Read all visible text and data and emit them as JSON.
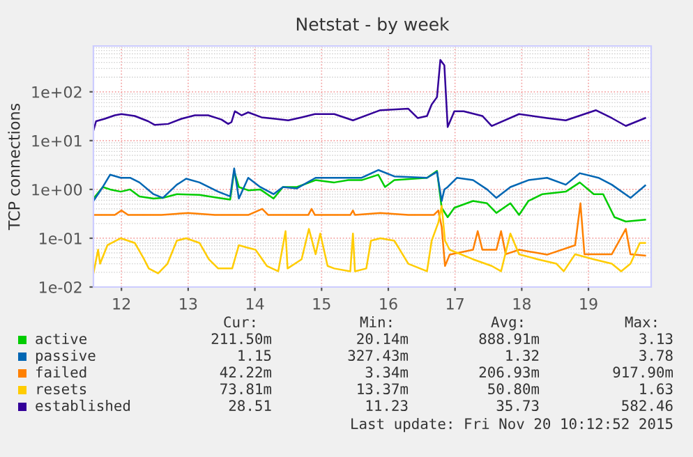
{
  "chart_data": {
    "type": "line",
    "title": "Netstat - by week",
    "ylabel": "TCP connections",
    "log": "y",
    "grid": true,
    "legend": "bottom",
    "xlim": [
      11.58,
      19.94
    ],
    "xticks": [
      12,
      13,
      14,
      15,
      16,
      17,
      18,
      19
    ],
    "ylim": [
      0.01,
      870
    ],
    "yticks": [
      {
        "value": 0.01,
        "label": "1e-02"
      },
      {
        "value": 0.1,
        "label": "1e-01"
      },
      {
        "value": 1,
        "label": "1e+00"
      },
      {
        "value": 10,
        "label": "1e+01"
      },
      {
        "value": 100,
        "label": "1e+02"
      }
    ],
    "series": [
      {
        "name": "active",
        "color": "#00cc00",
        "x": [
          11.58,
          11.72,
          11.83,
          11.99,
          12.13,
          12.27,
          12.48,
          12.62,
          12.83,
          13.17,
          13.45,
          13.63,
          13.69,
          13.76,
          13.9,
          14.08,
          14.28,
          14.42,
          14.63,
          14.91,
          15.19,
          15.4,
          15.6,
          15.85,
          15.95,
          16.09,
          16.58,
          16.73,
          16.8,
          16.89,
          16.99,
          17.27,
          17.48,
          17.62,
          17.83,
          17.96,
          18.1,
          18.31,
          18.66,
          18.87,
          19.08,
          19.22,
          19.39,
          19.56,
          19.85
        ],
        "values": [
          0.65,
          1.12,
          1.0,
          0.9,
          1.0,
          0.72,
          0.65,
          0.67,
          0.8,
          0.77,
          0.67,
          0.62,
          2.4,
          1.12,
          0.96,
          1.0,
          0.65,
          1.12,
          1.12,
          1.55,
          1.39,
          1.55,
          1.55,
          2.0,
          1.12,
          1.55,
          1.73,
          2.4,
          0.42,
          0.27,
          0.42,
          0.58,
          0.52,
          0.33,
          0.52,
          0.3,
          0.58,
          0.8,
          0.9,
          1.39,
          0.8,
          0.8,
          0.27,
          0.22,
          0.24
        ]
      },
      {
        "name": "passive",
        "color": "#0066b3",
        "x": [
          11.58,
          11.72,
          11.83,
          11.99,
          12.13,
          12.27,
          12.48,
          12.62,
          12.83,
          12.97,
          13.17,
          13.45,
          13.63,
          13.69,
          13.76,
          13.9,
          14.08,
          14.28,
          14.42,
          14.63,
          14.91,
          15.19,
          15.6,
          15.85,
          16.09,
          16.58,
          16.73,
          16.8,
          16.84,
          16.89,
          17.03,
          17.27,
          17.48,
          17.62,
          17.83,
          18.1,
          18.38,
          18.66,
          18.87,
          19.15,
          19.35,
          19.63,
          19.85
        ],
        "values": [
          0.58,
          1.12,
          2.0,
          1.73,
          1.73,
          1.39,
          0.8,
          0.67,
          1.25,
          1.66,
          1.39,
          0.9,
          0.72,
          2.7,
          0.65,
          1.73,
          1.12,
          0.8,
          1.12,
          1.05,
          1.73,
          1.73,
          1.73,
          2.5,
          1.85,
          1.73,
          2.3,
          0.58,
          1.0,
          1.12,
          1.73,
          1.55,
          1.0,
          0.67,
          1.12,
          1.55,
          1.73,
          1.25,
          2.15,
          1.73,
          1.25,
          0.67,
          1.2
        ]
      },
      {
        "name": "failed",
        "color": "#ff8000",
        "x": [
          11.58,
          11.75,
          11.9,
          12.0,
          12.1,
          12.6,
          13.0,
          13.4,
          13.9,
          14.11,
          14.2,
          14.6,
          14.8,
          14.85,
          14.9,
          15.2,
          15.43,
          15.47,
          15.5,
          15.88,
          16.3,
          16.68,
          16.75,
          16.8,
          16.85,
          16.92,
          17.27,
          17.34,
          17.41,
          17.62,
          17.69,
          17.76,
          17.96,
          18.38,
          18.8,
          18.88,
          18.94,
          19.35,
          19.56,
          19.63,
          19.85
        ],
        "values": [
          0.3,
          0.3,
          0.3,
          0.37,
          0.3,
          0.3,
          0.33,
          0.3,
          0.3,
          0.4,
          0.3,
          0.3,
          0.3,
          0.4,
          0.3,
          0.3,
          0.3,
          0.37,
          0.3,
          0.33,
          0.3,
          0.3,
          0.37,
          0.17,
          0.027,
          0.046,
          0.058,
          0.14,
          0.058,
          0.058,
          0.14,
          0.047,
          0.058,
          0.046,
          0.072,
          0.52,
          0.047,
          0.047,
          0.155,
          0.047,
          0.044
        ]
      },
      {
        "name": "resets",
        "color": "#ffcc00",
        "x": [
          11.58,
          11.65,
          11.68,
          11.79,
          11.99,
          12.2,
          12.34,
          12.41,
          12.55,
          12.69,
          12.83,
          12.97,
          13.17,
          13.31,
          13.45,
          13.66,
          13.76,
          13.87,
          14.01,
          14.18,
          14.35,
          14.46,
          14.49,
          14.7,
          14.81,
          14.91,
          14.98,
          15.09,
          15.19,
          15.43,
          15.47,
          15.5,
          15.67,
          15.74,
          15.88,
          16.09,
          16.3,
          16.58,
          16.65,
          16.75,
          16.8,
          16.85,
          16.92,
          17.27,
          17.55,
          17.69,
          17.83,
          17.96,
          18.24,
          18.52,
          18.63,
          18.8,
          19.08,
          19.35,
          19.49,
          19.63,
          19.77,
          19.85
        ],
        "values": [
          0.019,
          0.058,
          0.03,
          0.072,
          0.1,
          0.08,
          0.037,
          0.024,
          0.019,
          0.03,
          0.089,
          0.1,
          0.08,
          0.037,
          0.024,
          0.024,
          0.072,
          0.065,
          0.058,
          0.027,
          0.021,
          0.14,
          0.024,
          0.037,
          0.155,
          0.047,
          0.125,
          0.027,
          0.024,
          0.021,
          0.125,
          0.021,
          0.024,
          0.089,
          0.1,
          0.089,
          0.03,
          0.021,
          0.089,
          0.21,
          0.46,
          0.089,
          0.058,
          0.037,
          0.027,
          0.021,
          0.125,
          0.047,
          0.037,
          0.03,
          0.021,
          0.047,
          0.037,
          0.03,
          0.021,
          0.03,
          0.08,
          0.08
        ]
      },
      {
        "name": "established",
        "color": "#330099",
        "x": [
          11.58,
          11.62,
          11.75,
          11.9,
          12.0,
          12.2,
          12.4,
          12.5,
          12.7,
          12.9,
          13.1,
          13.3,
          13.5,
          13.6,
          13.65,
          13.7,
          13.8,
          13.9,
          14.1,
          14.3,
          14.5,
          14.7,
          14.9,
          15.19,
          15.47,
          15.88,
          16.3,
          16.44,
          16.58,
          16.65,
          16.73,
          16.78,
          16.84,
          16.89,
          16.99,
          17.13,
          17.41,
          17.55,
          17.96,
          18.38,
          18.66,
          19.11,
          19.35,
          19.56,
          19.85
        ],
        "values": [
          16,
          25,
          28,
          33,
          35,
          32,
          25,
          21,
          22,
          28,
          33,
          33,
          27,
          22,
          24,
          40,
          33,
          38,
          30,
          28,
          26,
          30,
          35,
          35,
          26,
          42,
          45,
          29,
          32,
          55,
          78,
          450,
          350,
          19,
          40,
          40,
          32,
          20,
          35,
          29,
          26,
          42,
          29,
          20,
          29
        ]
      }
    ],
    "annotations": [
      "Cur:",
      "Min:",
      "Avg:",
      "Max:",
      "211.50m",
      "20.14m",
      "888.91m",
      "3.13",
      "1.15",
      "327.43m",
      "1.32",
      "3.78",
      "42.22m",
      "3.34m",
      "206.93m",
      "917.90m",
      "73.81m",
      "13.37m",
      "50.80m",
      "1.63",
      "28.51",
      "11.23",
      "35.73",
      "582.46",
      "Last update: Fri Nov 20 10:12:52 2015"
    ]
  }
}
